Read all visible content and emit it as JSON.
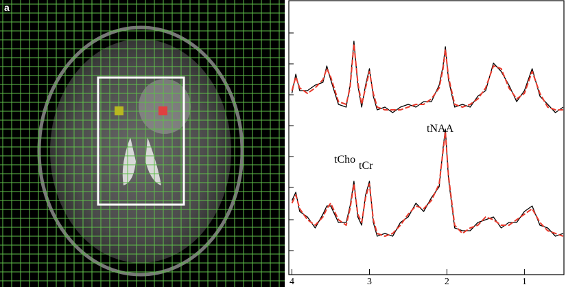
{
  "panel_label": "a",
  "chart_data": {
    "type": "line",
    "x": [
      4.0,
      3.95,
      3.9,
      3.8,
      3.7,
      3.6,
      3.55,
      3.5,
      3.4,
      3.3,
      3.25,
      3.2,
      3.15,
      3.1,
      3.05,
      3.0,
      2.95,
      2.9,
      2.8,
      2.7,
      2.6,
      2.5,
      2.4,
      2.3,
      2.2,
      2.1,
      2.05,
      2.02,
      1.98,
      1.9,
      1.8,
      1.7,
      1.6,
      1.5,
      1.4,
      1.3,
      1.2,
      1.1,
      1.0,
      0.9,
      0.8,
      0.7,
      0.6,
      0.5
    ],
    "xlim": [
      4.04,
      0.49
    ],
    "xticks": [
      4,
      3,
      2,
      1
    ],
    "ylim": [
      0,
      100
    ],
    "series": [
      {
        "color": "#000000",
        "dashed": false,
        "values": [
          66,
          73,
          67,
          67,
          69,
          70,
          76,
          71,
          62,
          61,
          69,
          85,
          69,
          61,
          69,
          75,
          65,
          60,
          61,
          59,
          61,
          62,
          61,
          63,
          63,
          69,
          76,
          83,
          71,
          61,
          62,
          61,
          65,
          67,
          77,
          74,
          69,
          63,
          67,
          75,
          65,
          62,
          59,
          61
        ]
      },
      {
        "color": "#e8392b",
        "dashed": true,
        "values": [
          67,
          72,
          68,
          66,
          68,
          71,
          75,
          72,
          63,
          62,
          68,
          84,
          70,
          62,
          68,
          74,
          66,
          61,
          60,
          60,
          60,
          61,
          62,
          62,
          64,
          68,
          75,
          82,
          72,
          62,
          61,
          62,
          64,
          68,
          76,
          75,
          68,
          64,
          66,
          74,
          66,
          61,
          60,
          60
        ]
      },
      {
        "color": "#000000",
        "dashed": false,
        "values": [
          27,
          30,
          23,
          21,
          17,
          22,
          25,
          25,
          19,
          19,
          25,
          34,
          21,
          18,
          29,
          34,
          19,
          14,
          15,
          14,
          19,
          21,
          26,
          23,
          28,
          32,
          46,
          53,
          35,
          17,
          16,
          16,
          19,
          20,
          21,
          17,
          19,
          19,
          23,
          25,
          18,
          17,
          14,
          15
        ]
      },
      {
        "color": "#e8392b",
        "dashed": true,
        "values": [
          26,
          29,
          24,
          20,
          18,
          21,
          24,
          26,
          20,
          18,
          24,
          33,
          22,
          19,
          28,
          33,
          20,
          15,
          14,
          15,
          18,
          22,
          25,
          24,
          27,
          33,
          45,
          52,
          36,
          18,
          15,
          17,
          18,
          21,
          20,
          18,
          18,
          20,
          22,
          24,
          19,
          16,
          15,
          14
        ]
      }
    ],
    "annotations": [
      "tNAA",
      "tCho",
      "tCr"
    ]
  }
}
